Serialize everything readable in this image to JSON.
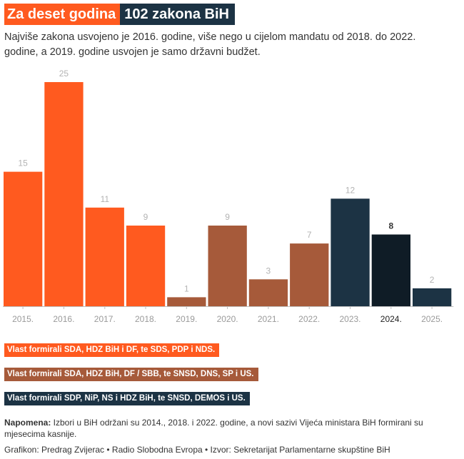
{
  "header": {
    "title_part1": "Za deset godina",
    "title_part2": "102 zakona BiH",
    "subtitle": "Najviše zakona usvojeno je 2016. godine, više nego u cijelom mandatu od 2018. do 2022. godine, a 2019. godine usvojen je samo državni budžet."
  },
  "colors": {
    "orange": "#ff5a1f",
    "brown": "#a65a3a",
    "navy": "#1c3344",
    "navy_dark": "#0f1c26"
  },
  "chart_data": {
    "type": "bar",
    "title": "102 zakona BiH",
    "xlabel": "",
    "ylabel": "",
    "ylim": [
      0,
      25
    ],
    "grid": false,
    "categories": [
      "2015.",
      "2016.",
      "2017.",
      "2018.",
      "2019.",
      "2020.",
      "2021.",
      "2022.",
      "2023.",
      "2024.",
      "2025."
    ],
    "values": [
      15,
      25,
      11,
      9,
      1,
      9,
      3,
      7,
      12,
      8,
      2
    ],
    "groups": [
      "orange",
      "orange",
      "orange",
      "orange",
      "brown",
      "brown",
      "brown",
      "brown",
      "navy",
      "navy_dark",
      "navy"
    ],
    "highlight": "2024."
  },
  "legend": {
    "item1": "Vlast formirali SDA, HDZ BiH i DF, te SDS, PDP i NDS.",
    "item2": "Vlast formirali SDA, HDZ BiH, DF / SBB, te SNSD, DNS, SP i US.",
    "item3": "Vlast formirali SDP, NiP, NS i HDZ BiH, te SNSD, DEMOS i US."
  },
  "footer": {
    "note_label": "Napomena:",
    "note_text": " Izbori u BiH održani su 2014., 2018. i 2022. godine, a novi sazivi Vijeća ministara BiH formirani su mjesecima kasnije.",
    "credits": "Grafikon: Predrag Zvijerac • Radio Slobodna Evropa • Izvor: Sekretarijat Parlamentarne skupštine BiH"
  }
}
